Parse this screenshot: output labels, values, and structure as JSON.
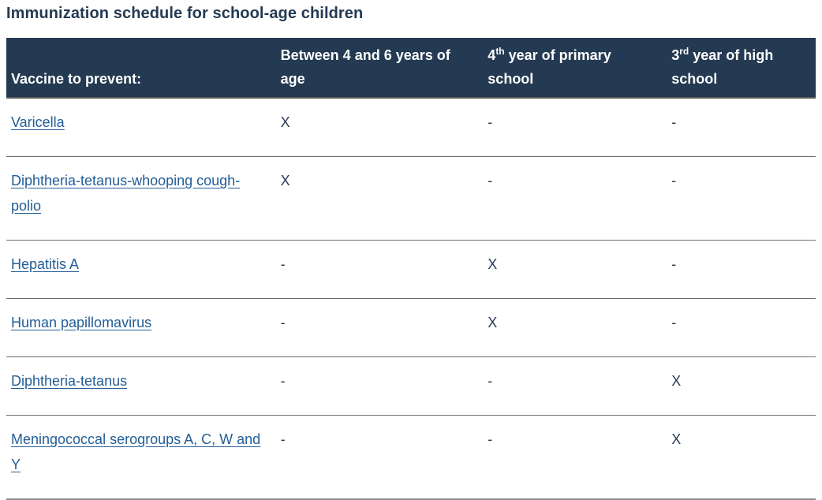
{
  "title": "Immunization schedule for school-age children",
  "table": {
    "header": {
      "col0": {
        "text": "Vaccine to prevent:"
      },
      "col1": {
        "text": "Between 4 and 6 years of age"
      },
      "col2": {
        "base": "4",
        "sup": "th",
        "rest": " year of primary school"
      },
      "col3": {
        "base": "3",
        "sup": "rd",
        "rest": " year of high school"
      }
    },
    "rows": [
      {
        "vaccine": "Varicella",
        "c1": "X",
        "c2": "-",
        "c3": "-"
      },
      {
        "vaccine": "Diphtheria-tetanus-whooping cough-polio",
        "c1": "X",
        "c2": "-",
        "c3": "-"
      },
      {
        "vaccine": "Hepatitis A",
        "c1": "-",
        "c2": "X",
        "c3": "-"
      },
      {
        "vaccine": "Human papillomavirus",
        "c1": "-",
        "c2": "X",
        "c3": "-"
      },
      {
        "vaccine": "Diphtheria-tetanus",
        "c1": "-",
        "c2": "-",
        "c3": "X"
      },
      {
        "vaccine": "Meningococcal serogroups A, C, W and Y",
        "c1": "-",
        "c2": "-",
        "c3": "X"
      }
    ]
  },
  "colors": {
    "header_bg": "#243a52",
    "header_text": "#ffffff",
    "title_text": "#243a52",
    "link": "#235d97",
    "cell_text": "#2a3b57",
    "row_border": "#6e6e6e",
    "bottom_border": "#8b8b94"
  }
}
